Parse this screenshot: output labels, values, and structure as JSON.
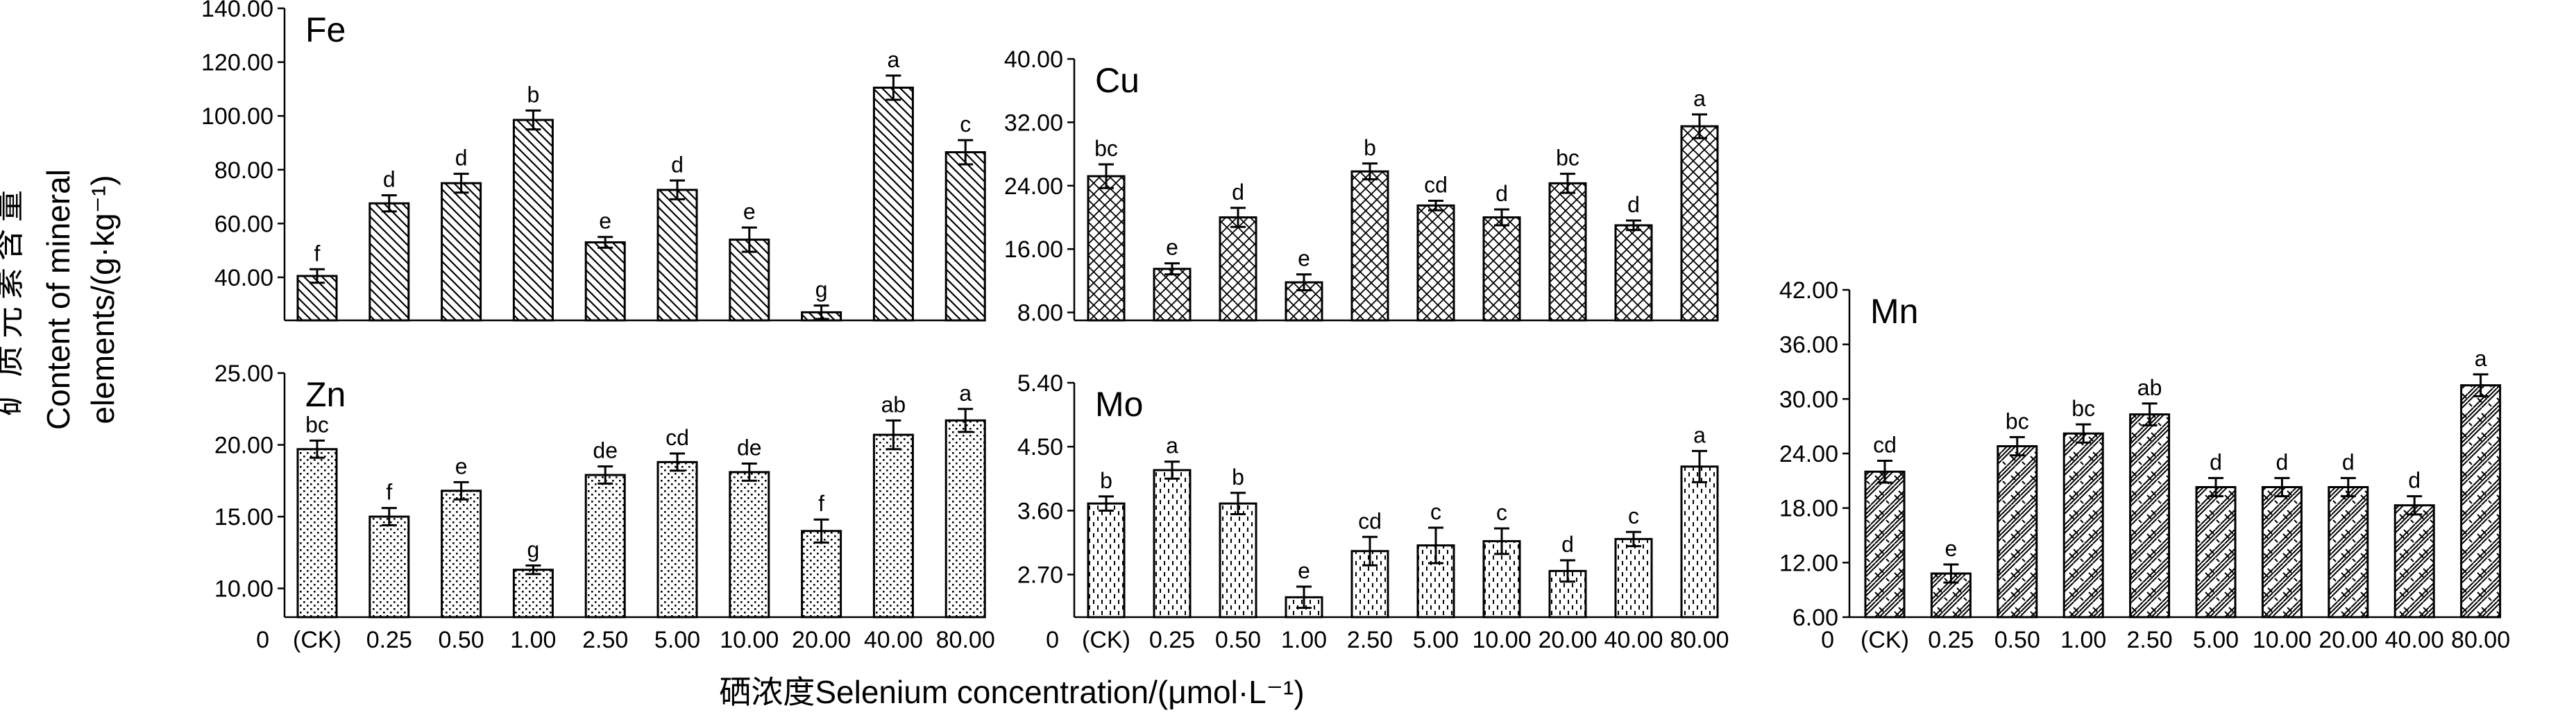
{
  "figure": {
    "y_axis_label_cn": "矿质元素含量",
    "y_axis_label_en_line1": "Content of mineral",
    "y_axis_label_en_line2": "elements/(g·kg⁻¹)",
    "x_axis_label": "硒浓度Selenium concentration/(μmol·L⁻¹)",
    "x_zero_label": "0",
    "x_first_label": "(CK)",
    "x_tick_labels": [
      "0.25",
      "0.50",
      "1.00",
      "2.50",
      "5.00",
      "10.00",
      "20.00",
      "40.00",
      "80.00"
    ]
  },
  "chart_data": [
    {
      "type": "bar",
      "element": "Fe",
      "pattern": "diag-down",
      "categories": [
        "0 (CK)",
        "0.25",
        "0.50",
        "1.00",
        "2.50",
        "5.00",
        "10.00",
        "20.00",
        "40.00",
        "80.00"
      ],
      "values": [
        40.5,
        67.5,
        75.0,
        98.5,
        53.0,
        72.5,
        54.0,
        27.0,
        110.5,
        86.5
      ],
      "errors": [
        2.5,
        3.0,
        3.5,
        3.5,
        2.0,
        3.5,
        4.5,
        2.5,
        4.5,
        4.5
      ],
      "letters": [
        "f",
        "d",
        "d",
        "b",
        "e",
        "d",
        "e",
        "g",
        "a",
        "c"
      ],
      "ylim": [
        24,
        140
      ],
      "yticks": [
        "40.00",
        "60.00",
        "80.00",
        "100.00",
        "120.00",
        "140.00"
      ],
      "ytick_values": [
        40,
        60,
        80,
        100,
        120,
        140
      ]
    },
    {
      "type": "bar",
      "element": "Cu",
      "pattern": "crosshatch",
      "categories": [
        "0 (CK)",
        "0.25",
        "0.50",
        "1.00",
        "2.50",
        "5.00",
        "10.00",
        "20.00",
        "40.00",
        "80.00"
      ],
      "values": [
        25.2,
        13.5,
        20.0,
        11.8,
        25.8,
        21.5,
        20.0,
        24.3,
        19.0,
        31.5
      ],
      "errors": [
        1.5,
        0.7,
        1.2,
        1.0,
        1.0,
        0.6,
        1.0,
        1.2,
        0.6,
        1.5
      ],
      "letters": [
        "bc",
        "e",
        "d",
        "e",
        "b",
        "cd",
        "d",
        "bc",
        "d",
        "a"
      ],
      "ylim": [
        7,
        40
      ],
      "yticks": [
        "8.00",
        "16.00",
        "24.00",
        "32.00",
        "40.00"
      ],
      "ytick_values": [
        8,
        16,
        24,
        32,
        40
      ]
    },
    {
      "type": "bar",
      "element": "Mn",
      "pattern": "hatch-blocks",
      "categories": [
        "0 (CK)",
        "0.25",
        "0.50",
        "1.00",
        "2.50",
        "5.00",
        "10.00",
        "20.00",
        "40.00",
        "80.00"
      ],
      "values": [
        22.0,
        10.8,
        24.8,
        26.2,
        28.3,
        20.3,
        20.3,
        20.3,
        18.3,
        31.5
      ],
      "errors": [
        1.2,
        1.0,
        1.0,
        1.0,
        1.2,
        1.0,
        1.0,
        1.0,
        1.0,
        1.2
      ],
      "letters": [
        "cd",
        "e",
        "bc",
        "bc",
        "ab",
        "d",
        "d",
        "d",
        "d",
        "a"
      ],
      "ylim": [
        6,
        42
      ],
      "yticks": [
        "6.00",
        "12.00",
        "18.00",
        "24.00",
        "30.00",
        "36.00",
        "42.00"
      ],
      "ytick_values": [
        6,
        12,
        18,
        24,
        30,
        36,
        42
      ]
    },
    {
      "type": "bar",
      "element": "Zn",
      "pattern": "dots",
      "categories": [
        "0 (CK)",
        "0.25",
        "0.50",
        "1.00",
        "2.50",
        "5.00",
        "10.00",
        "20.00",
        "40.00",
        "80.00"
      ],
      "values": [
        19.7,
        15.0,
        16.8,
        11.3,
        17.9,
        18.8,
        18.1,
        14.0,
        20.7,
        21.7
      ],
      "errors": [
        0.6,
        0.6,
        0.6,
        0.3,
        0.6,
        0.6,
        0.6,
        0.8,
        1.0,
        0.8
      ],
      "letters": [
        "bc",
        "f",
        "e",
        "g",
        "de",
        "cd",
        "de",
        "f",
        "ab",
        "a"
      ],
      "ylim": [
        8,
        25
      ],
      "yticks": [
        "10.00",
        "15.00",
        "20.00",
        "25.00"
      ],
      "ytick_values": [
        10,
        15,
        20,
        25
      ]
    },
    {
      "type": "bar",
      "element": "Mo",
      "pattern": "dashes",
      "categories": [
        "0 (CK)",
        "0.25",
        "0.50",
        "1.00",
        "2.50",
        "5.00",
        "10.00",
        "20.00",
        "40.00",
        "80.00"
      ],
      "values": [
        3.7,
        4.17,
        3.7,
        2.38,
        3.03,
        3.11,
        3.17,
        2.75,
        3.2,
        4.22
      ],
      "errors": [
        0.1,
        0.12,
        0.15,
        0.15,
        0.2,
        0.25,
        0.18,
        0.15,
        0.1,
        0.22
      ],
      "letters": [
        "b",
        "a",
        "b",
        "e",
        "cd",
        "c",
        "c",
        "d",
        "c",
        "a"
      ],
      "ylim": [
        2.1,
        5.4
      ],
      "yticks": [
        "2.70",
        "3.60",
        "4.50",
        "5.40"
      ],
      "ytick_values": [
        2.7,
        3.6,
        4.5,
        5.4
      ]
    }
  ]
}
